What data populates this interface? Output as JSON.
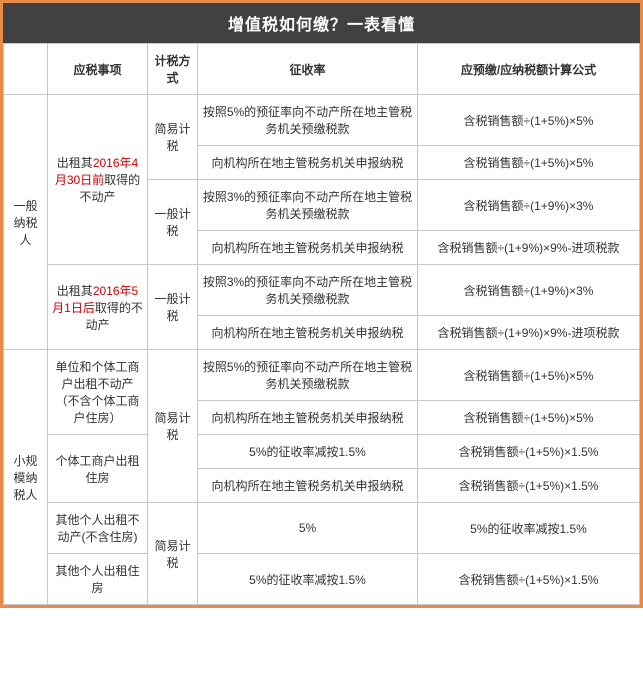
{
  "title": "增值税如何缴？一表看懂",
  "headers": {
    "c1": "",
    "c2": "应税事项",
    "c3": "计税方式",
    "c4": "征收率",
    "c5": "应预缴/应纳税额计算公式"
  },
  "g1": {
    "label": "一般纳税人",
    "item1": {
      "pre": "出租其",
      "red": "2016年4月30日前",
      "post": "取得的不动产"
    },
    "item2": {
      "pre": "出租其",
      "red": "2016年5月1日后",
      "post": "取得的不动产"
    },
    "m1": "简易计税",
    "m2": "一般计税",
    "m3": "一般计税",
    "r1": {
      "c4": "按照5%的预征率向不动产所在地主管税务机关预缴税款",
      "c5": "含税销售额÷(1+5%)×5%"
    },
    "r2": {
      "c4": "向机构所在地主管税务机关申报纳税",
      "c5": "含税销售额÷(1+5%)×5%"
    },
    "r3": {
      "c4": "按照3%的预征率向不动产所在地主管税务机关预缴税款",
      "c5": "含税销售额÷(1+9%)×3%"
    },
    "r4": {
      "c4": "向机构所在地主管税务机关申报纳税",
      "c5": "含税销售额÷(1+9%)×9%-进项税款"
    },
    "r5": {
      "c4": "按照3%的预征率向不动产所在地主管税务机关预缴税款",
      "c5": "含税销售额÷(1+9%)×3%"
    },
    "r6": {
      "c4": "向机构所在地主管税务机关申报纳税",
      "c5": "含税销售额÷(1+9%)×9%-进项税款"
    }
  },
  "g2": {
    "label": "小规模纳税人",
    "item1": "单位和个体工商户出租不动产（不含个体工商户住房）",
    "item2": "个体工商户出租住房",
    "item3": "其他个人出租不动产(不含住房)",
    "item4": "其他个人出租住房",
    "m1": "简易计税",
    "m2": "简易计税",
    "r1": {
      "c4": "按照5%的预征率向不动产所在地主管税务机关预缴税款",
      "c5": "含税销售额÷(1+5%)×5%"
    },
    "r2": {
      "c4": "向机构所在地主管税务机关申报纳税",
      "c5": "含税销售额÷(1+5%)×5%"
    },
    "r3": {
      "c4": "5%的征收率减按1.5%",
      "c5": "含税销售额÷(1+5%)×1.5%"
    },
    "r4": {
      "c4": "向机构所在地主管税务机关申报纳税",
      "c5": "含税销售额÷(1+5%)×1.5%"
    },
    "r5": {
      "c4": "5%",
      "c5": "5%的征收率减按1.5%"
    },
    "r6": {
      "c4": "5%的征收率减按1.5%",
      "c5": "含税销售额÷(1+5%)×1.5%"
    }
  }
}
